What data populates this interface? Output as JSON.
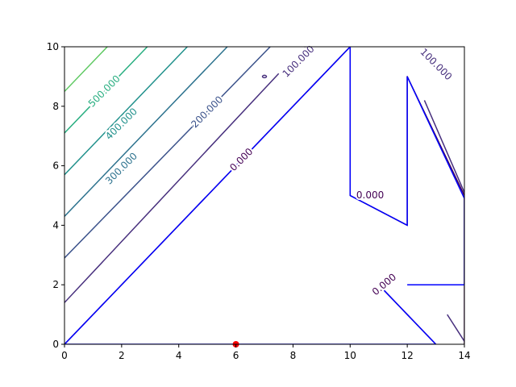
{
  "chart_data": {
    "type": "contour",
    "title": "",
    "xlabel": "",
    "ylabel": "",
    "xlim": [
      0,
      14
    ],
    "ylim": [
      0,
      10
    ],
    "xticks": [
      0,
      2,
      4,
      6,
      8,
      10,
      12,
      14
    ],
    "yticks": [
      0,
      2,
      4,
      6,
      8,
      10
    ],
    "grid": false,
    "contour_lines": [
      {
        "level": "0.000",
        "color": "#440154",
        "points": [
          [
            0,
            0
          ],
          [
            10,
            10
          ],
          [
            10,
            5
          ],
          [
            12,
            4
          ],
          [
            12,
            9
          ],
          [
            14,
            5
          ],
          [
            14,
            0
          ]
        ]
      },
      {
        "level": "0.000",
        "color": "#440154",
        "points": [
          [
            11,
            2
          ],
          [
            13,
            0
          ]
        ]
      },
      {
        "level": "100.000",
        "color": "#472f7d",
        "points": [
          [
            0,
            1.4
          ],
          [
            7.5,
            9.1
          ]
        ]
      },
      {
        "level": "100.000",
        "color": "#472f7d",
        "points": [
          [
            8.4,
            10
          ],
          [
            8.6,
            10
          ]
        ]
      },
      {
        "level": "100.000",
        "color": "#472f7d",
        "points": [
          [
            12.6,
            8.2
          ],
          [
            14,
            5.1
          ]
        ]
      },
      {
        "level": "100.000",
        "color": "#472f7d",
        "points": [
          [
            13.4,
            1
          ],
          [
            14,
            0.1
          ]
        ]
      },
      {
        "level": "200.000",
        "color": "#3b528b",
        "points": [
          [
            0,
            2.9
          ],
          [
            7.2,
            10
          ]
        ]
      },
      {
        "level": "300.000",
        "color": "#2c728e",
        "points": [
          [
            0,
            4.3
          ],
          [
            5.7,
            10
          ]
        ]
      },
      {
        "level": "400.000",
        "color": "#21918c",
        "points": [
          [
            0,
            5.7
          ],
          [
            4.3,
            10
          ]
        ]
      },
      {
        "level": "500.000",
        "color": "#28ae80",
        "points": [
          [
            0,
            7.1
          ],
          [
            2.9,
            10
          ]
        ]
      },
      {
        "level": "600.000",
        "color": "#5ec962",
        "points": [
          [
            0,
            8.5
          ],
          [
            1.5,
            10
          ]
        ]
      }
    ],
    "labels": [
      {
        "text": "0.000",
        "x": 6.2,
        "y": 6.2,
        "angle": -45,
        "color": "#440154"
      },
      {
        "text": "0.000",
        "x": 10.7,
        "y": 5.0,
        "angle": 0,
        "color": "#440154"
      },
      {
        "text": "0.000",
        "x": 11.2,
        "y": 2.0,
        "angle": -40,
        "color": "#440154"
      },
      {
        "text": "100.000",
        "x": 8.2,
        "y": 9.5,
        "angle": -45,
        "color": "#472f7d"
      },
      {
        "text": "100.000",
        "x": 13.0,
        "y": 9.4,
        "angle": 45,
        "color": "#472f7d"
      },
      {
        "text": "200.000",
        "x": 5.0,
        "y": 7.8,
        "angle": -45,
        "color": "#3b528b"
      },
      {
        "text": "300.000",
        "x": 2.0,
        "y": 5.9,
        "angle": -45,
        "color": "#2c728e"
      },
      {
        "text": "400.000",
        "x": 2.0,
        "y": 7.4,
        "angle": -45,
        "color": "#21918c"
      },
      {
        "text": "500.000",
        "x": 1.4,
        "y": 8.5,
        "angle": -45,
        "color": "#28ae80"
      }
    ],
    "boundary": {
      "color": "#0000ff",
      "segments": [
        [
          [
            0,
            0
          ],
          [
            10,
            10
          ],
          [
            10,
            5
          ],
          [
            12,
            4
          ],
          [
            12,
            9
          ],
          [
            14,
            4.9
          ],
          [
            14,
            2
          ],
          [
            12,
            2
          ]
        ],
        [
          [
            11,
            2
          ],
          [
            13,
            0
          ],
          [
            0,
            0
          ]
        ]
      ]
    },
    "point": {
      "x": 6,
      "y": 0,
      "color": "#ff0000"
    }
  }
}
